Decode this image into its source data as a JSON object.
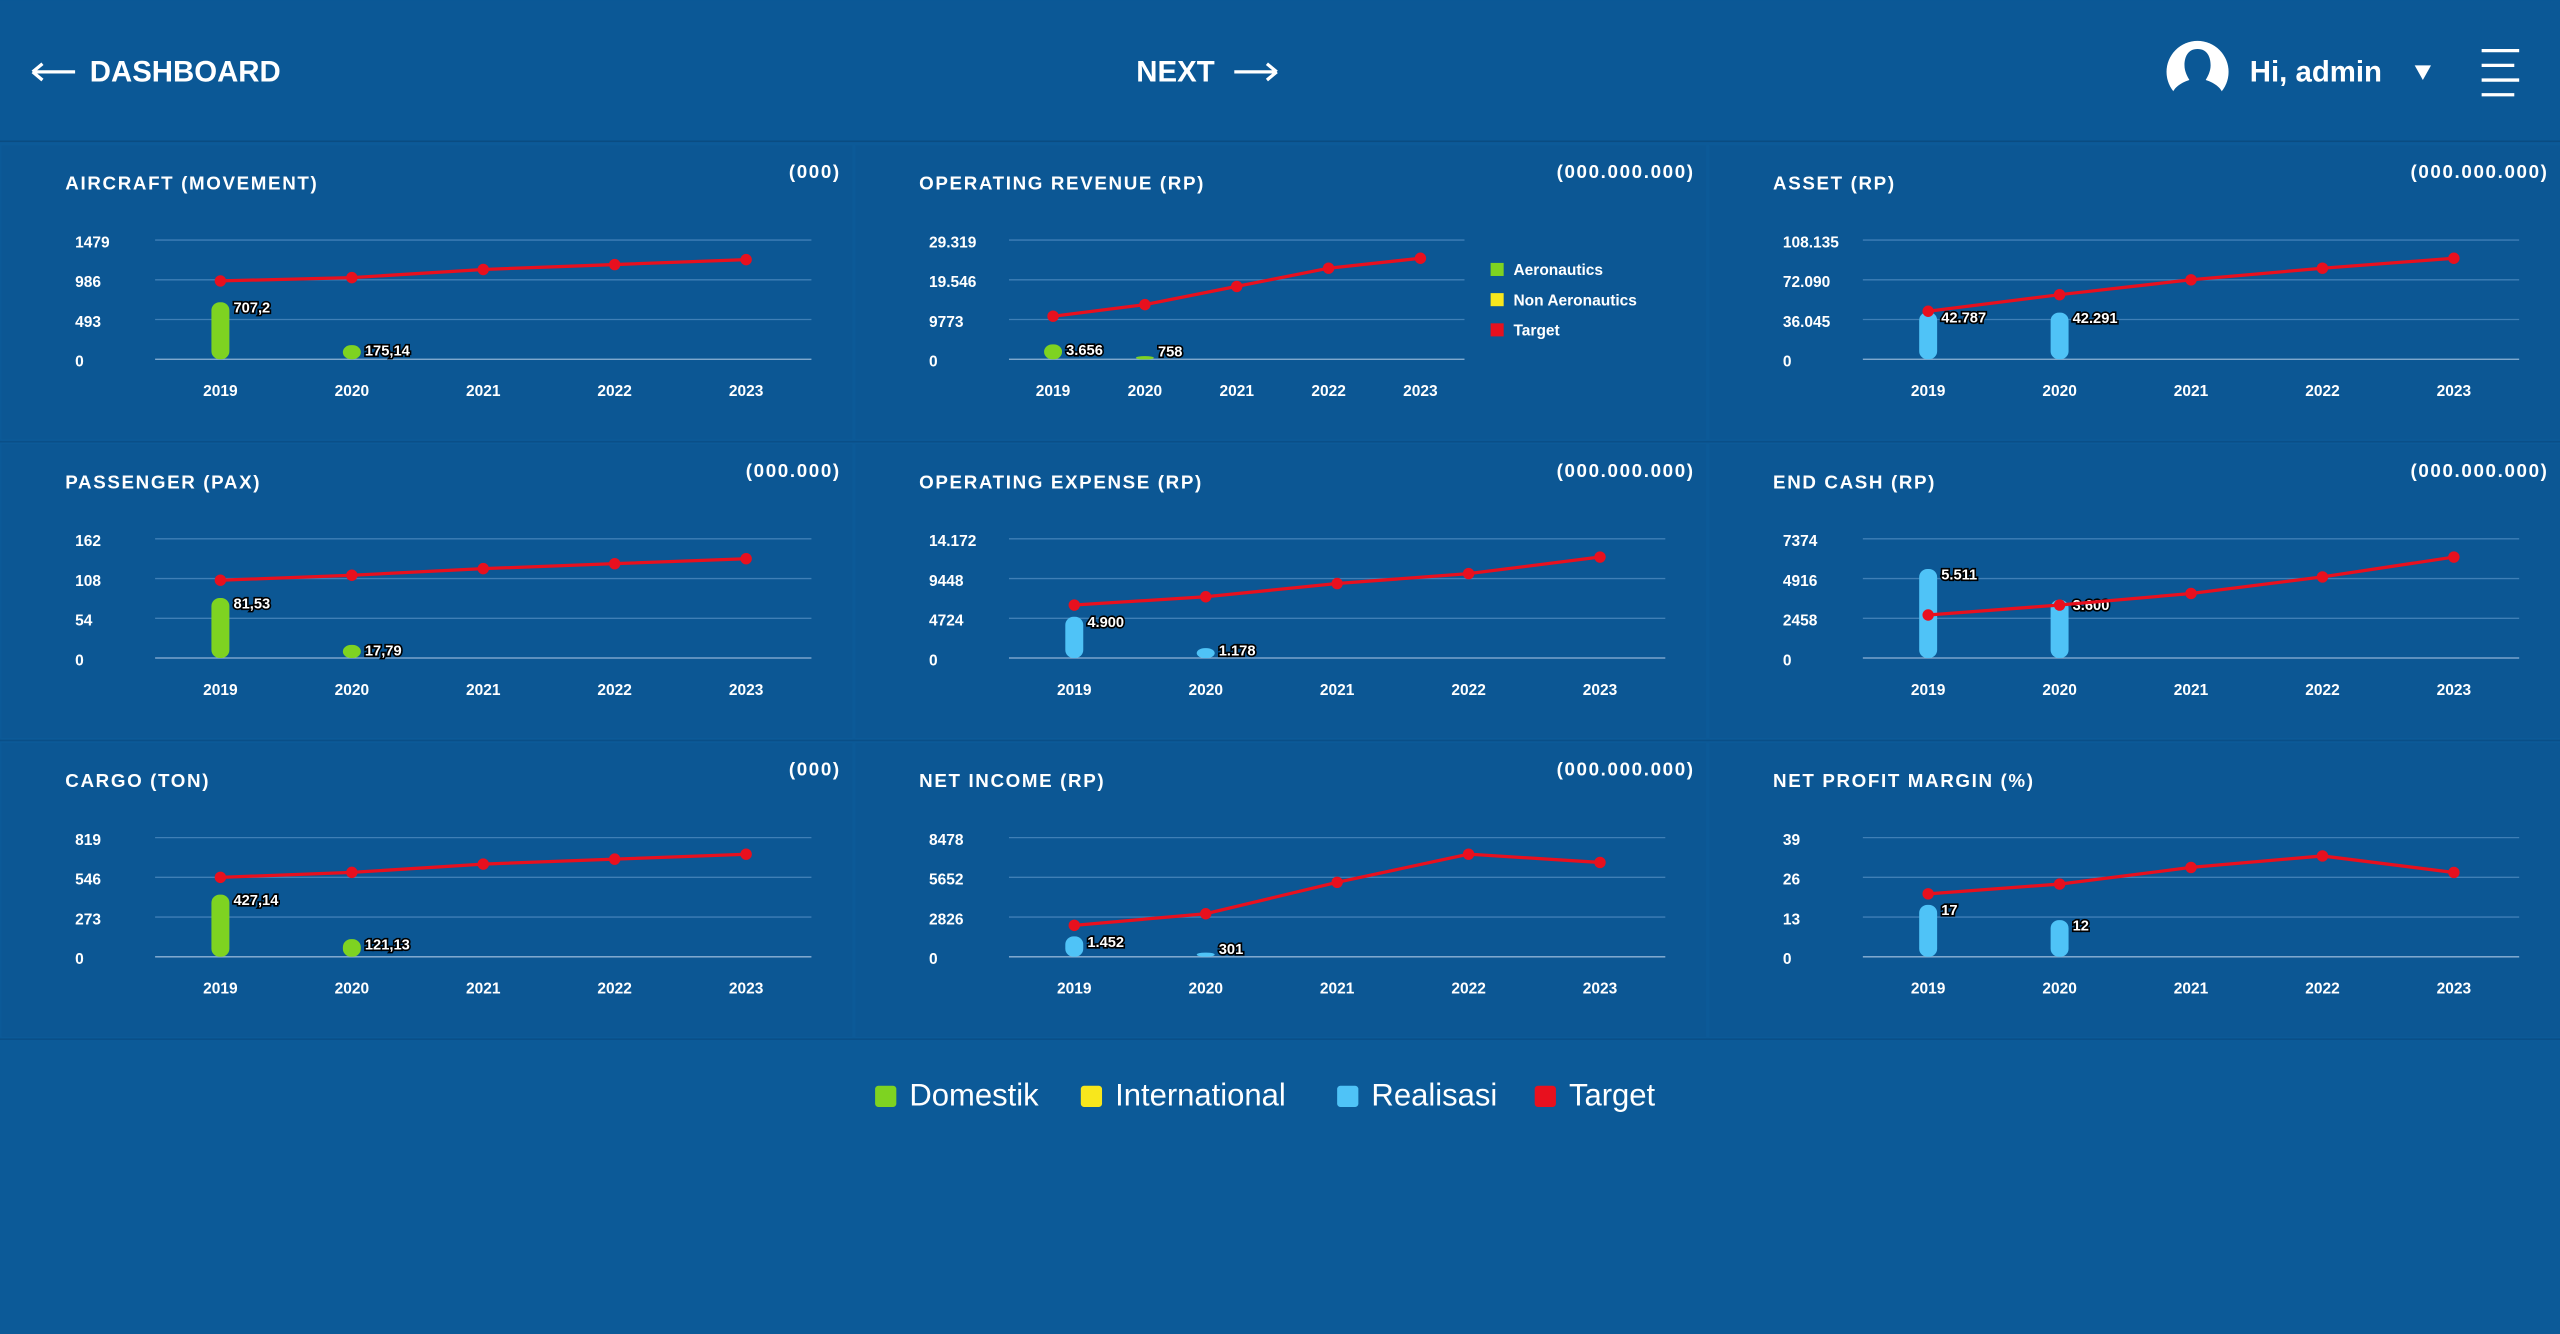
{
  "header": {
    "back": "DASHBOARD",
    "next": "NEXT",
    "greeting": "Hi, admin"
  },
  "legend": [
    {
      "name": "Domestik",
      "color": "#7ed321"
    },
    {
      "name": "International",
      "color": "#f8e71c"
    },
    {
      "name": "Realisasi",
      "color": "#4fc3f7"
    },
    {
      "name": "Target",
      "color": "#e8101e"
    }
  ],
  "chart_data": [
    {
      "type": "bar",
      "title": "AIRCRAFT (MOVEMENT)",
      "unit": "(000)",
      "categories": [
        "2019",
        "2020",
        "2021",
        "2022",
        "2023"
      ],
      "ylim": [
        0,
        1479
      ],
      "yticks": [
        0,
        493,
        986,
        1479
      ],
      "series": [
        {
          "color": "#7ed321",
          "values": [
            707.2,
            175.14,
            null,
            null,
            null
          ],
          "value_labels": [
            "707,2",
            "175,14",
            null,
            null,
            null
          ]
        },
        {
          "type": "line",
          "color": "#e8101e",
          "values": [
            972,
            1013,
            1114,
            1175,
            1236
          ]
        }
      ]
    },
    {
      "type": "bar",
      "title": "OPERATING REVENUE (RP)",
      "unit": "(000.000.000)",
      "categories": [
        "2019",
        "2020",
        "2021",
        "2022",
        "2023"
      ],
      "ylim": [
        0,
        29319
      ],
      "yticks": [
        0,
        9773,
        {
          "value": 19546,
          "label": "19.546"
        },
        {
          "value": 29319,
          "label": "29.319"
        }
      ],
      "legend": true,
      "series": [
        {
          "name": "Aeronautics",
          "color": "#7ed321",
          "values": [
            3656,
            758,
            null,
            null,
            null
          ],
          "value_labels": [
            "3.656",
            "758",
            null,
            null,
            null
          ]
        },
        {
          "name": "Non Aeronautics",
          "color": "#f8e71c",
          "values": [
            null,
            null,
            null,
            null,
            null
          ]
        },
        {
          "name": "Target",
          "type": "line",
          "color": "#e8101e",
          "values": [
            10587,
            13438,
            17917,
            22397,
            24840
          ]
        }
      ]
    },
    {
      "type": "bar",
      "title": "ASSET (RP)",
      "unit": "(000.000.000)",
      "categories": [
        "2019",
        "2020",
        "2021",
        "2022",
        "2023"
      ],
      "ylim": [
        0,
        108135
      ],
      "yticks": [
        0,
        {
          "value": 36045,
          "label": "36.045"
        },
        {
          "value": 72090,
          "label": "72.090"
        },
        {
          "value": 108135,
          "label": "108.135"
        }
      ],
      "series": [
        {
          "color": "#4fc3f7",
          "values": [
            42787,
            42291,
            null,
            null,
            null
          ],
          "value_labels": [
            "42.787",
            "42.291",
            null,
            null,
            null
          ]
        },
        {
          "type": "line",
          "color": "#e8101e",
          "values": [
            43554,
            58573,
            72090,
            82603,
            91614
          ]
        }
      ]
    },
    {
      "type": "bar",
      "title": "PASSENGER (PAX)",
      "unit": "(000.000)",
      "categories": [
        "2019",
        "2020",
        "2021",
        "2022",
        "2023"
      ],
      "ylim": [
        0,
        162
      ],
      "yticks": [
        0,
        54,
        108,
        162
      ],
      "series": [
        {
          "color": "#7ed321",
          "values": [
            81.53,
            17.79,
            null,
            null,
            null
          ],
          "value_labels": [
            "81,53",
            "17,79",
            null,
            null,
            null
          ]
        },
        {
          "type": "line",
          "color": "#e8101e",
          "values": [
            105.75,
            112.5,
            121.5,
            128.25,
            135
          ]
        }
      ]
    },
    {
      "type": "bar",
      "title": "OPERATING EXPENSE (RP)",
      "unit": "(000.000.000)",
      "categories": [
        "2019",
        "2020",
        "2021",
        "2022",
        "2023"
      ],
      "ylim": [
        0,
        14172
      ],
      "yticks": [
        0,
        4724,
        9448,
        {
          "value": 14172,
          "label": "14.172"
        }
      ],
      "series": [
        {
          "color": "#4fc3f7",
          "values": [
            4900,
            1178,
            null,
            null,
            null
          ],
          "value_labels": [
            "4.900",
            "1.178",
            null,
            null,
            null
          ]
        },
        {
          "type": "line",
          "color": "#e8101e",
          "values": [
            6299,
            7283,
            8858,
            10039,
            12007
          ]
        }
      ]
    },
    {
      "type": "bar",
      "title": "END CASH (RP)",
      "unit": "(000.000.000)",
      "categories": [
        "2019",
        "2020",
        "2021",
        "2022",
        "2023"
      ],
      "ylim": [
        0,
        7374
      ],
      "yticks": [
        0,
        2458,
        4916,
        7374
      ],
      "series": [
        {
          "color": "#4fc3f7",
          "values": [
            5511,
            3600,
            null,
            null,
            null
          ],
          "value_labels": [
            "5.511",
            "3.600",
            null,
            null,
            null
          ]
        },
        {
          "type": "line",
          "color": "#e8101e",
          "values": [
            2663,
            3277,
            3994,
            5018,
            6247
          ]
        }
      ]
    },
    {
      "type": "bar",
      "title": "CARGO (TON)",
      "unit": "(000)",
      "categories": [
        "2019",
        "2020",
        "2021",
        "2022",
        "2023"
      ],
      "ylim": [
        0,
        819
      ],
      "yticks": [
        0,
        273,
        546,
        819
      ],
      "series": [
        {
          "color": "#7ed321",
          "values": [
            427.14,
            121.13,
            null,
            null,
            null
          ],
          "value_labels": [
            "427,14",
            "121,13",
            null,
            null,
            null
          ]
        },
        {
          "type": "line",
          "color": "#e8101e",
          "values": [
            546,
            580,
            637,
            671,
            705
          ]
        }
      ]
    },
    {
      "type": "bar",
      "title": "NET INCOME (RP)",
      "unit": "(000.000.000)",
      "categories": [
        "2019",
        "2020",
        "2021",
        "2022",
        "2023"
      ],
      "ylim": [
        0,
        8478
      ],
      "yticks": [
        0,
        2826,
        5652,
        8478
      ],
      "series": [
        {
          "color": "#4fc3f7",
          "values": [
            1452,
            301,
            null,
            null,
            null
          ],
          "value_labels": [
            "1.452",
            "301",
            null,
            null,
            null
          ]
        },
        {
          "type": "line",
          "color": "#e8101e",
          "values": [
            2237,
            3061,
            5299,
            7300,
            6712
          ]
        }
      ]
    },
    {
      "type": "bar",
      "title": "NET PROFIT MARGIN (%)",
      "categories": [
        "2019",
        "2020",
        "2021",
        "2022",
        "2023"
      ],
      "ylim": [
        0,
        39
      ],
      "yticks": [
        0,
        13,
        26,
        39
      ],
      "series": [
        {
          "color": "#4fc3f7",
          "values": [
            17,
            12,
            null,
            null,
            null
          ]
        },
        {
          "type": "line",
          "color": "#e8101e",
          "values": [
            20.6,
            23.8,
            29.25,
            33,
            27.6
          ]
        }
      ]
    }
  ]
}
